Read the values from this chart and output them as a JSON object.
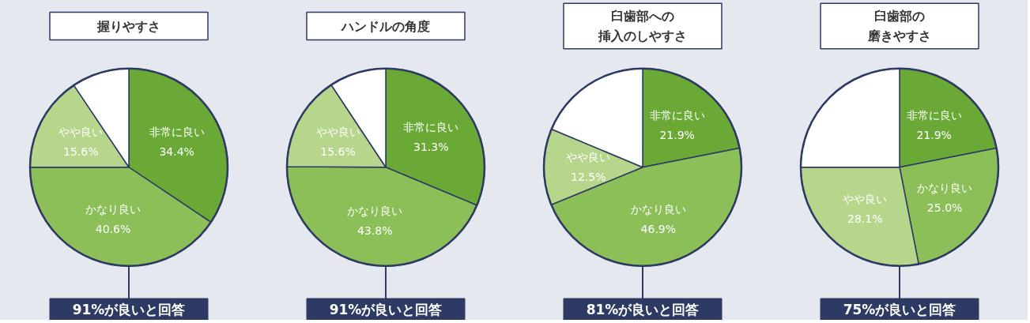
{
  "chart_data": [
    {
      "type": "pie",
      "title": "握りやすさ",
      "categories": [
        "非常に良い",
        "かなり良い",
        "やや良い",
        null
      ],
      "values": [
        34.4,
        40.6,
        15.6,
        9.4
      ],
      "value_labels": [
        "34.4%",
        "40.6%",
        "15.6%",
        null
      ],
      "colors": [
        "#6aa936",
        "#8dbf58",
        "#b6d68c",
        "#ffffff"
      ],
      "annotations": [
        "91%が良いと回答"
      ]
    },
    {
      "type": "pie",
      "title": "ハンドルの角度",
      "categories": [
        "非常に良い",
        "かなり良い",
        "やや良い",
        null
      ],
      "values": [
        31.3,
        43.8,
        15.6,
        9.3
      ],
      "value_labels": [
        "31.3%",
        "43.8%",
        "15.6%",
        null
      ],
      "colors": [
        "#6aa936",
        "#8dbf58",
        "#b6d68c",
        "#ffffff"
      ],
      "annotations": [
        "91%が良いと回答"
      ]
    },
    {
      "type": "pie",
      "title": "臼歯部への挿入のしやすさ",
      "categories": [
        "非常に良い",
        "かなり良い",
        "やや良い",
        null
      ],
      "values": [
        21.9,
        46.9,
        12.5,
        18.7
      ],
      "value_labels": [
        "21.9%",
        "46.9%",
        "12.5%",
        null
      ],
      "colors": [
        "#6aa936",
        "#8dbf58",
        "#b6d68c",
        "#ffffff"
      ],
      "annotations": [
        "81%が良いと回答"
      ]
    },
    {
      "type": "pie",
      "title": "臼歯部の磨きやすさ",
      "categories": [
        "非常に良い",
        "かなり良い",
        "やや良い",
        null
      ],
      "values": [
        21.9,
        25.0,
        28.1,
        25.0
      ],
      "value_labels": [
        "21.9%",
        "25.0%",
        "28.1%",
        null
      ],
      "colors": [
        "#6aa936",
        "#8dbf58",
        "#b6d68c",
        "#ffffff"
      ],
      "annotations": [
        "75%が良いと回答"
      ]
    }
  ]
}
